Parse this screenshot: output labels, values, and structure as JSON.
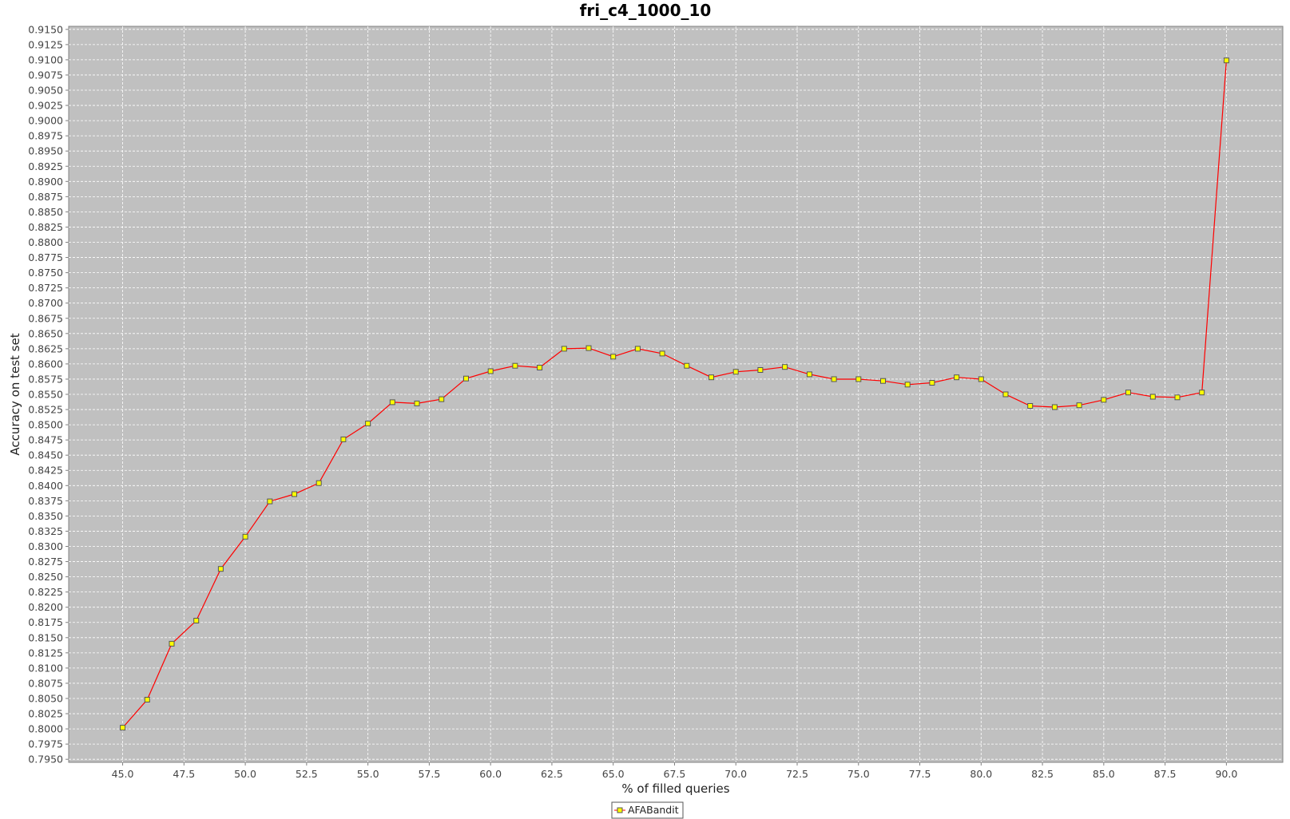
{
  "chart_data": {
    "type": "line",
    "title": "fri_c4_1000_10",
    "xlabel": "% of filled queries",
    "ylabel": "Accuracy on test set",
    "xlim": [
      42.8,
      92.3
    ],
    "ylim": [
      0.7945,
      0.9155
    ],
    "xticks": [
      "45.0",
      "47.5",
      "50.0",
      "52.5",
      "55.0",
      "57.5",
      "60.0",
      "62.5",
      "65.0",
      "67.5",
      "70.0",
      "72.5",
      "75.0",
      "77.5",
      "80.0",
      "82.5",
      "85.0",
      "87.5",
      "90.0"
    ],
    "yticks": [
      "0.7950",
      "0.7975",
      "0.8000",
      "0.8025",
      "0.8050",
      "0.8075",
      "0.8100",
      "0.8125",
      "0.8150",
      "0.8175",
      "0.8200",
      "0.8225",
      "0.8250",
      "0.8275",
      "0.8300",
      "0.8325",
      "0.8350",
      "0.8375",
      "0.8400",
      "0.8425",
      "0.8450",
      "0.8475",
      "0.8500",
      "0.8525",
      "0.8550",
      "0.8575",
      "0.8600",
      "0.8625",
      "0.8650",
      "0.8675",
      "0.8700",
      "0.8725",
      "0.8750",
      "0.8775",
      "0.8800",
      "0.8825",
      "0.8850",
      "0.8875",
      "0.8900",
      "0.8925",
      "0.8950",
      "0.8975",
      "0.9000",
      "0.9025",
      "0.9050",
      "0.9075",
      "0.9100",
      "0.9125",
      "0.9150"
    ],
    "grid": true,
    "legend_position": "bottom-center",
    "colors": {
      "plot_background": "#c0c0c0",
      "gridline": "#ffffff",
      "line": "#ff0000",
      "marker_fill": "#ffff00",
      "marker_stroke": "#555555"
    },
    "series": [
      {
        "name": "AFABandit",
        "x": [
          45,
          46,
          47,
          48,
          49,
          50,
          51,
          52,
          53,
          54,
          55,
          56,
          57,
          58,
          59,
          60,
          61,
          62,
          63,
          64,
          65,
          66,
          67,
          68,
          69,
          70,
          71,
          72,
          73,
          74,
          75,
          76,
          77,
          78,
          79,
          80,
          81,
          82,
          83,
          84,
          85,
          86,
          87,
          88,
          89,
          90
        ],
        "y": [
          0.8002,
          0.8048,
          0.814,
          0.8178,
          0.8263,
          0.8316,
          0.8374,
          0.8386,
          0.8404,
          0.8476,
          0.8502,
          0.8537,
          0.8535,
          0.8542,
          0.8576,
          0.8588,
          0.8597,
          0.8594,
          0.8625,
          0.8626,
          0.8612,
          0.8625,
          0.8617,
          0.8597,
          0.8578,
          0.8587,
          0.859,
          0.8595,
          0.8583,
          0.8575,
          0.8575,
          0.8572,
          0.8566,
          0.8569,
          0.8578,
          0.8575,
          0.855,
          0.8531,
          0.8529,
          0.8532,
          0.8541,
          0.8553,
          0.8546,
          0.8545,
          0.8553,
          0.9099
        ]
      }
    ]
  }
}
